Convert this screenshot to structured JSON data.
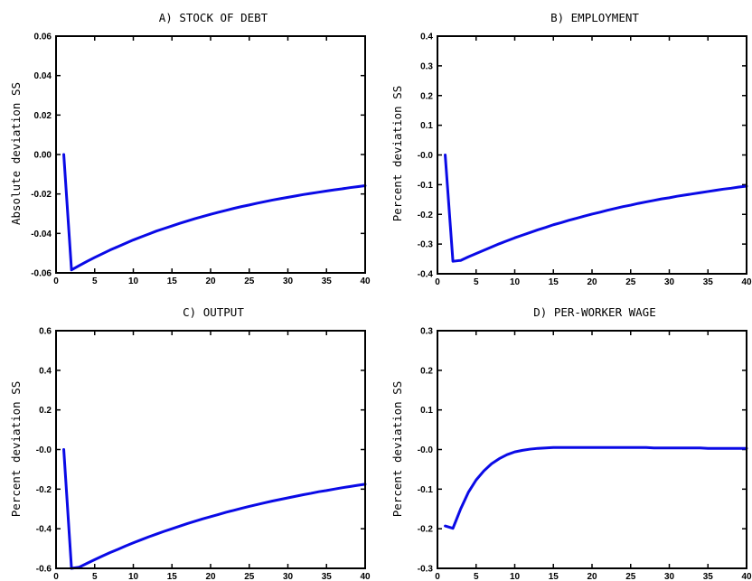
{
  "chart_data": [
    {
      "type": "line",
      "title": "A) STOCK OF DEBT",
      "ylabel": "Absolute deviation SS",
      "xlabel": "",
      "xlim": [
        0,
        40
      ],
      "ylim": [
        -0.06,
        0.06
      ],
      "xticks": [
        0,
        5,
        10,
        15,
        20,
        25,
        30,
        35,
        40
      ],
      "xtick_labels": [
        "0",
        "5",
        "10",
        "15",
        "20",
        "25",
        "30",
        "35",
        "40"
      ],
      "yticks": [
        -0.06,
        -0.04,
        -0.02,
        0.0,
        0.02,
        0.04,
        0.06
      ],
      "ytick_labels": [
        "-0.06",
        "-0.04",
        "-0.02",
        "0.00",
        "0.02",
        "0.04",
        "0.06"
      ],
      "series": [
        {
          "color": "#0a0ae6",
          "x": [
            1,
            2,
            3,
            4,
            5,
            6,
            7,
            8,
            9,
            10,
            11,
            12,
            13,
            14,
            15,
            16,
            17,
            18,
            19,
            20,
            21,
            22,
            23,
            24,
            25,
            26,
            27,
            28,
            29,
            30,
            31,
            32,
            33,
            34,
            35,
            36,
            37,
            38,
            39,
            40
          ],
          "y": [
            0.0,
            -0.0585,
            -0.0563,
            -0.0542,
            -0.0522,
            -0.0503,
            -0.0484,
            -0.0467,
            -0.045,
            -0.0433,
            -0.0418,
            -0.0403,
            -0.0388,
            -0.0375,
            -0.0362,
            -0.0349,
            -0.0337,
            -0.0325,
            -0.0314,
            -0.0303,
            -0.0293,
            -0.0283,
            -0.0273,
            -0.0264,
            -0.0256,
            -0.0247,
            -0.0239,
            -0.0231,
            -0.0224,
            -0.0217,
            -0.021,
            -0.0203,
            -0.0197,
            -0.0191,
            -0.0185,
            -0.0179,
            -0.0174,
            -0.0168,
            -0.0163,
            -0.0158
          ]
        }
      ]
    },
    {
      "type": "line",
      "title": "B) EMPLOYMENT",
      "ylabel": "Percent deviation SS",
      "xlabel": "",
      "xlim": [
        0,
        40
      ],
      "ylim": [
        -0.4,
        0.4
      ],
      "xticks": [
        0,
        5,
        10,
        15,
        20,
        25,
        30,
        35,
        40
      ],
      "xtick_labels": [
        "0",
        "5",
        "10",
        "15",
        "20",
        "25",
        "30",
        "35",
        "40"
      ],
      "yticks": [
        -0.4,
        -0.3,
        -0.2,
        -0.1,
        0.0,
        0.1,
        0.2,
        0.3,
        0.4
      ],
      "ytick_labels": [
        "-0.4",
        "-0.3",
        "-0.2",
        "-0.1",
        "-0.0",
        "0.1",
        "0.2",
        "0.3",
        "0.4"
      ],
      "series": [
        {
          "color": "#0a0ae6",
          "x": [
            1,
            2,
            3,
            4,
            5,
            6,
            7,
            8,
            9,
            10,
            11,
            12,
            13,
            14,
            15,
            16,
            17,
            18,
            19,
            20,
            21,
            22,
            23,
            24,
            25,
            26,
            27,
            28,
            29,
            30,
            31,
            32,
            33,
            34,
            35,
            36,
            37,
            38,
            39,
            40
          ],
          "y": [
            0.0,
            -0.358,
            -0.355,
            -0.343,
            -0.332,
            -0.321,
            -0.31,
            -0.299,
            -0.289,
            -0.279,
            -0.27,
            -0.261,
            -0.252,
            -0.244,
            -0.235,
            -0.228,
            -0.22,
            -0.213,
            -0.206,
            -0.199,
            -0.193,
            -0.186,
            -0.18,
            -0.174,
            -0.169,
            -0.163,
            -0.158,
            -0.153,
            -0.148,
            -0.144,
            -0.139,
            -0.135,
            -0.131,
            -0.127,
            -0.123,
            -0.119,
            -0.115,
            -0.112,
            -0.108,
            -0.105
          ]
        }
      ]
    },
    {
      "type": "line",
      "title": "C) OUTPUT",
      "ylabel": "Percent deviation SS",
      "xlabel": "",
      "xlim": [
        0,
        40
      ],
      "ylim": [
        -0.6,
        0.6
      ],
      "xticks": [
        0,
        5,
        10,
        15,
        20,
        25,
        30,
        35,
        40
      ],
      "xtick_labels": [
        "0",
        "5",
        "10",
        "15",
        "20",
        "25",
        "30",
        "35",
        "40"
      ],
      "yticks": [
        -0.6,
        -0.4,
        -0.2,
        0.0,
        0.2,
        0.4,
        0.6
      ],
      "ytick_labels": [
        "-0.6",
        "-0.4",
        "-0.2",
        "-0.0",
        "0.2",
        "0.4",
        "0.6"
      ],
      "series": [
        {
          "color": "#0a0ae6",
          "x": [
            1,
            2,
            3,
            4,
            5,
            6,
            7,
            8,
            9,
            10,
            11,
            12,
            13,
            14,
            15,
            16,
            17,
            18,
            19,
            20,
            21,
            22,
            23,
            24,
            25,
            26,
            27,
            28,
            29,
            30,
            31,
            32,
            33,
            34,
            35,
            36,
            37,
            38,
            39,
            40
          ],
          "y": [
            0.0,
            -0.6,
            -0.594,
            -0.575,
            -0.556,
            -0.538,
            -0.52,
            -0.504,
            -0.487,
            -0.471,
            -0.456,
            -0.441,
            -0.427,
            -0.413,
            -0.4,
            -0.387,
            -0.374,
            -0.362,
            -0.35,
            -0.339,
            -0.328,
            -0.317,
            -0.307,
            -0.297,
            -0.287,
            -0.278,
            -0.269,
            -0.26,
            -0.252,
            -0.244,
            -0.236,
            -0.228,
            -0.221,
            -0.213,
            -0.207,
            -0.2,
            -0.193,
            -0.187,
            -0.181,
            -0.175
          ]
        }
      ]
    },
    {
      "type": "line",
      "title": "D) PER-WORKER WAGE",
      "ylabel": "Percent deviation SS",
      "xlabel": "",
      "xlim": [
        0,
        40
      ],
      "ylim": [
        -0.3,
        0.3
      ],
      "xticks": [
        0,
        5,
        10,
        15,
        20,
        25,
        30,
        35,
        40
      ],
      "xtick_labels": [
        "0",
        "5",
        "10",
        "15",
        "20",
        "25",
        "30",
        "35",
        "40"
      ],
      "yticks": [
        -0.3,
        -0.2,
        -0.1,
        0.0,
        0.1,
        0.2,
        0.3
      ],
      "ytick_labels": [
        "-0.3",
        "-0.2",
        "-0.1",
        "-0.0",
        "0.1",
        "0.2",
        "0.3"
      ],
      "series": [
        {
          "color": "#0a0ae6",
          "x": [
            1,
            2,
            3,
            4,
            5,
            6,
            7,
            8,
            9,
            10,
            11,
            12,
            13,
            14,
            15,
            16,
            17,
            18,
            19,
            20,
            21,
            22,
            23,
            24,
            25,
            26,
            27,
            28,
            29,
            30,
            31,
            32,
            33,
            34,
            35,
            36,
            37,
            38,
            39,
            40
          ],
          "y": [
            -0.193,
            -0.199,
            -0.15,
            -0.108,
            -0.077,
            -0.054,
            -0.036,
            -0.023,
            -0.013,
            -0.006,
            -0.002,
            0.001,
            0.003,
            0.004,
            0.005,
            0.005,
            0.005,
            0.005,
            0.005,
            0.005,
            0.005,
            0.005,
            0.005,
            0.005,
            0.005,
            0.005,
            0.005,
            0.004,
            0.004,
            0.004,
            0.004,
            0.004,
            0.004,
            0.004,
            0.003,
            0.003,
            0.003,
            0.003,
            0.003,
            0.003
          ]
        }
      ]
    }
  ]
}
